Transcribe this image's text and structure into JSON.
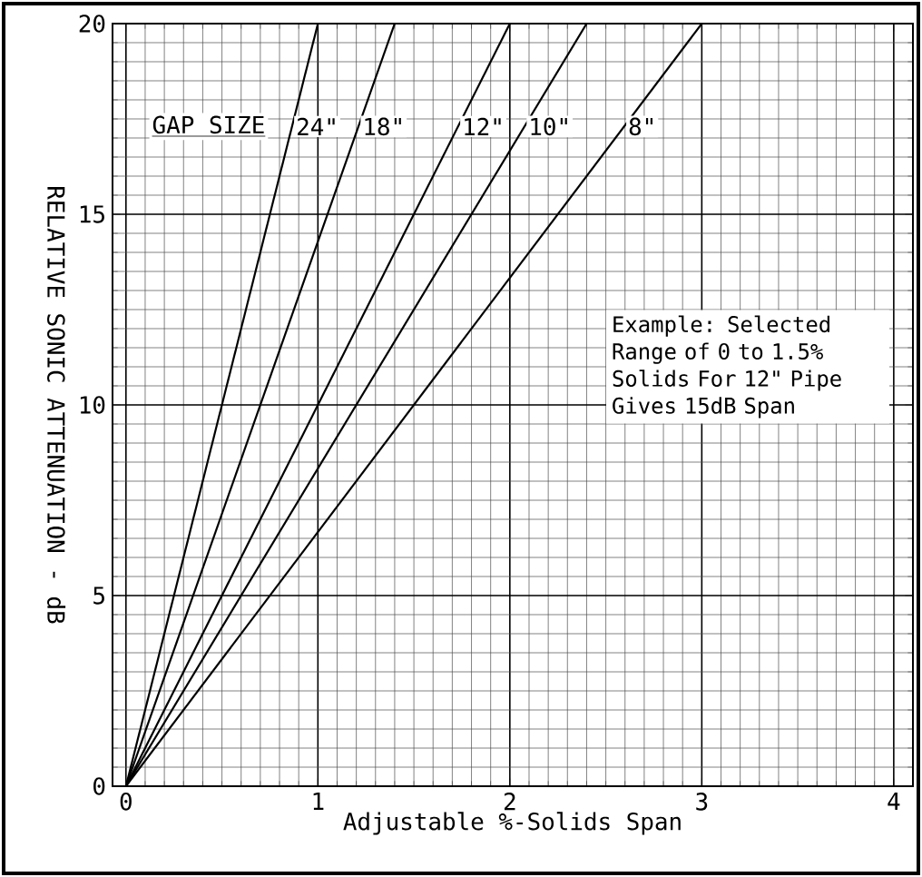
{
  "chart_data": {
    "type": "line",
    "xlabel": "Adjustable %-Solids Span",
    "ylabel": "RELATIVE SONIC ATTENUATION - dB",
    "legend_title": "GAP SIZE",
    "annotations": [
      "Example:  Selected Range of 0 to 1.5% Solids For 12\" Pipe Gives 15dB Span"
    ],
    "series": [
      {
        "name": "24\"",
        "color": "#000000",
        "x": [
          0,
          1.0
        ],
        "values": [
          0,
          20
        ]
      },
      {
        "name": "18\"",
        "color": "#000000",
        "x": [
          0,
          1.4
        ],
        "values": [
          0,
          20
        ]
      },
      {
        "name": "12\"",
        "color": "#000000",
        "x": [
          0,
          2.0
        ],
        "values": [
          0,
          20
        ]
      },
      {
        "name": "10\"",
        "color": "#000000",
        "x": [
          0,
          2.4
        ],
        "values": [
          0,
          20
        ]
      },
      {
        "name": "8\"",
        "color": "#000000",
        "x": [
          0,
          3.0
        ],
        "values": [
          0,
          20
        ]
      }
    ],
    "xlim": [
      -0.07,
      4.1
    ],
    "ylim": [
      0,
      20
    ],
    "xticks": [
      0,
      1,
      2,
      3,
      4
    ],
    "yticks": [
      0,
      5,
      10,
      15,
      20
    ],
    "grid": true,
    "marker": "none",
    "line_style": "solid"
  }
}
